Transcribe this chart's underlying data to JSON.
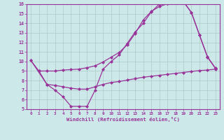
{
  "line1_x": [
    0,
    1,
    2,
    3,
    4,
    5,
    6,
    7,
    8,
    9,
    10,
    11,
    12,
    13,
    14,
    15,
    16,
    17,
    18,
    19,
    20,
    21,
    22,
    23
  ],
  "line1_y": [
    10.1,
    9.0,
    9.0,
    9.0,
    9.1,
    9.15,
    9.2,
    9.35,
    9.55,
    9.95,
    10.45,
    10.95,
    11.75,
    12.95,
    14.35,
    15.25,
    15.75,
    16.05,
    16.25,
    16.25,
    15.15,
    12.75,
    10.45,
    9.25
  ],
  "line2_x": [
    0,
    2,
    3,
    4,
    5,
    6,
    7,
    8,
    9,
    10,
    11,
    12,
    13,
    14,
    15,
    16,
    17,
    18,
    19,
    20,
    21,
    22,
    23
  ],
  "line2_y": [
    10.1,
    7.6,
    7.0,
    6.3,
    5.3,
    5.3,
    5.3,
    7.0,
    9.2,
    10.0,
    10.7,
    11.9,
    13.1,
    14.0,
    15.2,
    16.0,
    16.1,
    16.3,
    16.3,
    15.1,
    12.8,
    10.5,
    9.3
  ],
  "line3_x": [
    1,
    2,
    3,
    4,
    5,
    6,
    7,
    8,
    9,
    10,
    11,
    12,
    13,
    14,
    15,
    16,
    17,
    18,
    19,
    20,
    21,
    22,
    23
  ],
  "line3_y": [
    9.0,
    7.6,
    7.5,
    7.35,
    7.2,
    7.1,
    7.1,
    7.35,
    7.6,
    7.8,
    7.9,
    8.05,
    8.2,
    8.35,
    8.45,
    8.55,
    8.65,
    8.75,
    8.85,
    8.95,
    9.05,
    9.1,
    9.2
  ],
  "color": "#993399",
  "bg_color": "#cce8e8",
  "xlabel": "Windchill (Refroidissement éolien,°C)",
  "xlim": [
    -0.5,
    23.5
  ],
  "ylim": [
    5,
    16
  ],
  "xticks": [
    0,
    1,
    2,
    3,
    4,
    5,
    6,
    7,
    8,
    9,
    10,
    11,
    12,
    13,
    14,
    15,
    16,
    17,
    18,
    19,
    20,
    21,
    22,
    23
  ],
  "yticks": [
    5,
    6,
    7,
    8,
    9,
    10,
    11,
    12,
    13,
    14,
    15,
    16
  ],
  "grid_color": "#b0c8c8",
  "marker": "D",
  "markersize": 2.0,
  "linewidth": 0.9
}
